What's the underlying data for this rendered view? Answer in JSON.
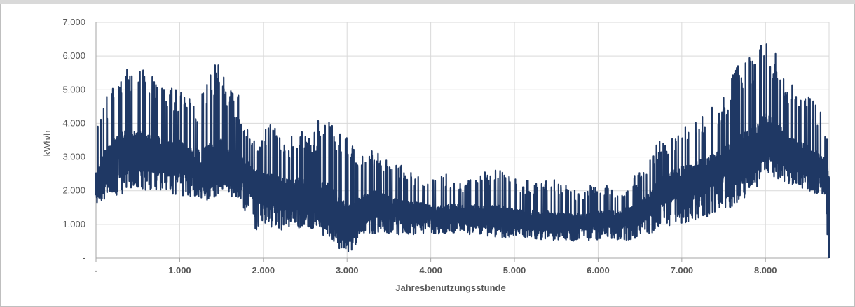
{
  "chart_data": {
    "type": "line",
    "title": "",
    "xlabel": "Jahresbenutzungsstunde",
    "ylabel": "kWh/h",
    "xlim": [
      0,
      8760
    ],
    "ylim": [
      0,
      7000
    ],
    "x_ticks": [
      0,
      1000,
      2000,
      3000,
      4000,
      5000,
      6000,
      7000,
      8000
    ],
    "x_tick_labels": [
      "-",
      "1.000",
      "2.000",
      "3.000",
      "4.000",
      "5.000",
      "6.000",
      "7.000",
      "8.000"
    ],
    "y_ticks": [
      0,
      1000,
      2000,
      3000,
      4000,
      5000,
      6000,
      7000
    ],
    "y_tick_labels": [
      "-",
      "1.000",
      "2.000",
      "3.000",
      "4.000",
      "5.000",
      "6.000",
      "7.000"
    ],
    "grid": true,
    "legend": "none",
    "series": [
      {
        "color": "#1f3864",
        "x": [
          0,
          100,
          200,
          300,
          400,
          500,
          600,
          700,
          800,
          900,
          1000,
          1100,
          1200,
          1300,
          1400,
          1500,
          1600,
          1700,
          1800,
          1900,
          2000,
          2100,
          2200,
          2300,
          2400,
          2500,
          2600,
          2700,
          2800,
          2900,
          3000,
          3100,
          3200,
          3300,
          3400,
          3500,
          3600,
          3700,
          3800,
          3900,
          4000,
          4100,
          4200,
          4300,
          4400,
          4500,
          4600,
          4700,
          4800,
          4900,
          5000,
          5100,
          5200,
          5300,
          5400,
          5500,
          5600,
          5700,
          5800,
          5900,
          6000,
          6100,
          6200,
          6300,
          6400,
          6500,
          6600,
          6700,
          6800,
          6900,
          7000,
          7100,
          7200,
          7300,
          7400,
          7500,
          7600,
          7700,
          7800,
          7900,
          8000,
          8100,
          8200,
          8300,
          8400,
          8500,
          8600,
          8700,
          8760
        ],
        "y_base": [
          2000,
          2600,
          2900,
          3000,
          3100,
          3150,
          3050,
          3000,
          3000,
          2900,
          2900,
          2800,
          2700,
          2600,
          2700,
          2800,
          2600,
          2500,
          2400,
          2100,
          2000,
          1900,
          1800,
          1850,
          1800,
          1800,
          1700,
          1600,
          1500,
          1200,
          900,
          1100,
          1400,
          1500,
          1500,
          1400,
          1350,
          1300,
          1300,
          1300,
          1250,
          1200,
          1250,
          1300,
          1250,
          1200,
          1200,
          1200,
          1150,
          1150,
          1100,
          1100,
          1100,
          1050,
          1050,
          1000,
          1000,
          1000,
          1050,
          1050,
          1100,
          1100,
          1100,
          1150,
          1200,
          1300,
          1500,
          1800,
          2000,
          2100,
          2200,
          2200,
          2300,
          2400,
          2500,
          2600,
          2700,
          2900,
          3000,
          3200,
          3600,
          3500,
          3200,
          3000,
          2900,
          2800,
          2700,
          2500,
          2000
        ],
        "y_high": [
          4200,
          4700,
          5200,
          5700,
          5600,
          5800,
          5500,
          5400,
          5100,
          5200,
          5000,
          4800,
          4600,
          5200,
          5800,
          5700,
          5000,
          4900,
          4000,
          3500,
          3800,
          4100,
          3800,
          3500,
          3900,
          4000,
          3700,
          4400,
          4300,
          3800,
          3600,
          3400,
          3200,
          3300,
          3200,
          3000,
          2800,
          2700,
          2600,
          2500,
          2400,
          2500,
          2500,
          2400,
          2300,
          2700,
          2600,
          2500,
          2800,
          2500,
          2400,
          2300,
          2300,
          2300,
          2400,
          2300,
          2200,
          2100,
          2000,
          2200,
          2100,
          2200,
          2000,
          2100,
          2400,
          2600,
          3000,
          3500,
          3400,
          3600,
          3900,
          4200,
          4500,
          4300,
          4600,
          4800,
          5600,
          5800,
          6000,
          6300,
          6500,
          6200,
          5600,
          5200,
          5000,
          4900,
          4600,
          4200,
          3200
        ],
        "y_low": [
          1500,
          1700,
          1900,
          1800,
          2000,
          2100,
          2000,
          2000,
          2000,
          1900,
          1900,
          1800,
          1800,
          1700,
          1800,
          1900,
          1800,
          1700,
          1300,
          800,
          1000,
          900,
          800,
          900,
          900,
          900,
          800,
          700,
          600,
          300,
          150,
          300,
          700,
          700,
          800,
          700,
          700,
          700,
          700,
          700,
          700,
          700,
          700,
          700,
          700,
          700,
          650,
          650,
          600,
          600,
          600,
          600,
          600,
          550,
          550,
          500,
          500,
          500,
          550,
          500,
          550,
          500,
          500,
          500,
          550,
          600,
          700,
          800,
          900,
          1000,
          1000,
          1100,
          1100,
          1200,
          1300,
          1400,
          1500,
          1700,
          1900,
          2100,
          2600,
          2400,
          2300,
          2200,
          2100,
          2000,
          1900,
          1700,
          0
        ]
      }
    ]
  }
}
